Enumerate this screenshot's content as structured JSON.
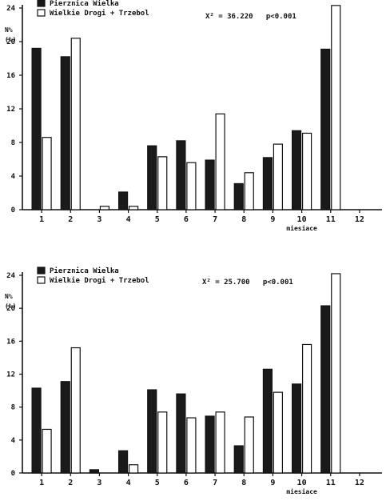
{
  "chart_data": [
    {
      "type": "bar",
      "title": "",
      "xlabel": "miesiace",
      "ylabel": "N% (%)",
      "ylabel_parts": [
        "N%",
        "(%)"
      ],
      "ylim": [
        0,
        24
      ],
      "yticks": [
        0,
        4,
        8,
        12,
        16,
        20,
        24
      ],
      "categories": [
        "1",
        "2",
        "3",
        "4",
        "5",
        "6",
        "7",
        "8",
        "9",
        "10",
        "11",
        "12"
      ],
      "series": [
        {
          "name": "Pierznica Wielka",
          "color": "#1a1a1a",
          "values": [
            19.2,
            18.2,
            0,
            2.1,
            7.6,
            8.2,
            5.9,
            3.1,
            6.2,
            9.4,
            19.1,
            0
          ]
        },
        {
          "name": "Wielkie Drogi + Trzebol",
          "color": "#ffffff",
          "values": [
            8.6,
            20.4,
            0.4,
            0.4,
            6.3,
            5.6,
            11.4,
            4.4,
            7.8,
            9.1,
            24.3,
            0
          ]
        }
      ],
      "statistic": "X² = 36.220   p<0.001",
      "legend_position": "top-left",
      "grid": false
    },
    {
      "type": "bar",
      "title": "",
      "xlabel": "miesiace",
      "ylabel": "N% (%)",
      "ylabel_parts": [
        "N%",
        "(%)"
      ],
      "ylim": [
        0,
        24
      ],
      "yticks": [
        0,
        4,
        8,
        12,
        16,
        20,
        24
      ],
      "categories": [
        "1",
        "2",
        "3",
        "4",
        "5",
        "6",
        "7",
        "8",
        "9",
        "10",
        "11",
        "12"
      ],
      "series": [
        {
          "name": "Pierznica Wielka",
          "color": "#1a1a1a",
          "values": [
            10.3,
            11.1,
            0.4,
            2.7,
            10.1,
            9.6,
            6.9,
            3.3,
            12.6,
            10.8,
            20.3,
            0
          ]
        },
        {
          "name": "Wielkie Drogi + Trzebol",
          "color": "#ffffff",
          "values": [
            5.3,
            15.2,
            0,
            1.0,
            7.4,
            6.7,
            7.4,
            6.8,
            9.8,
            15.6,
            24.2,
            0
          ]
        }
      ],
      "statistic": "X² = 25.700   p<0.001",
      "legend_position": "top-left",
      "grid": false
    }
  ]
}
